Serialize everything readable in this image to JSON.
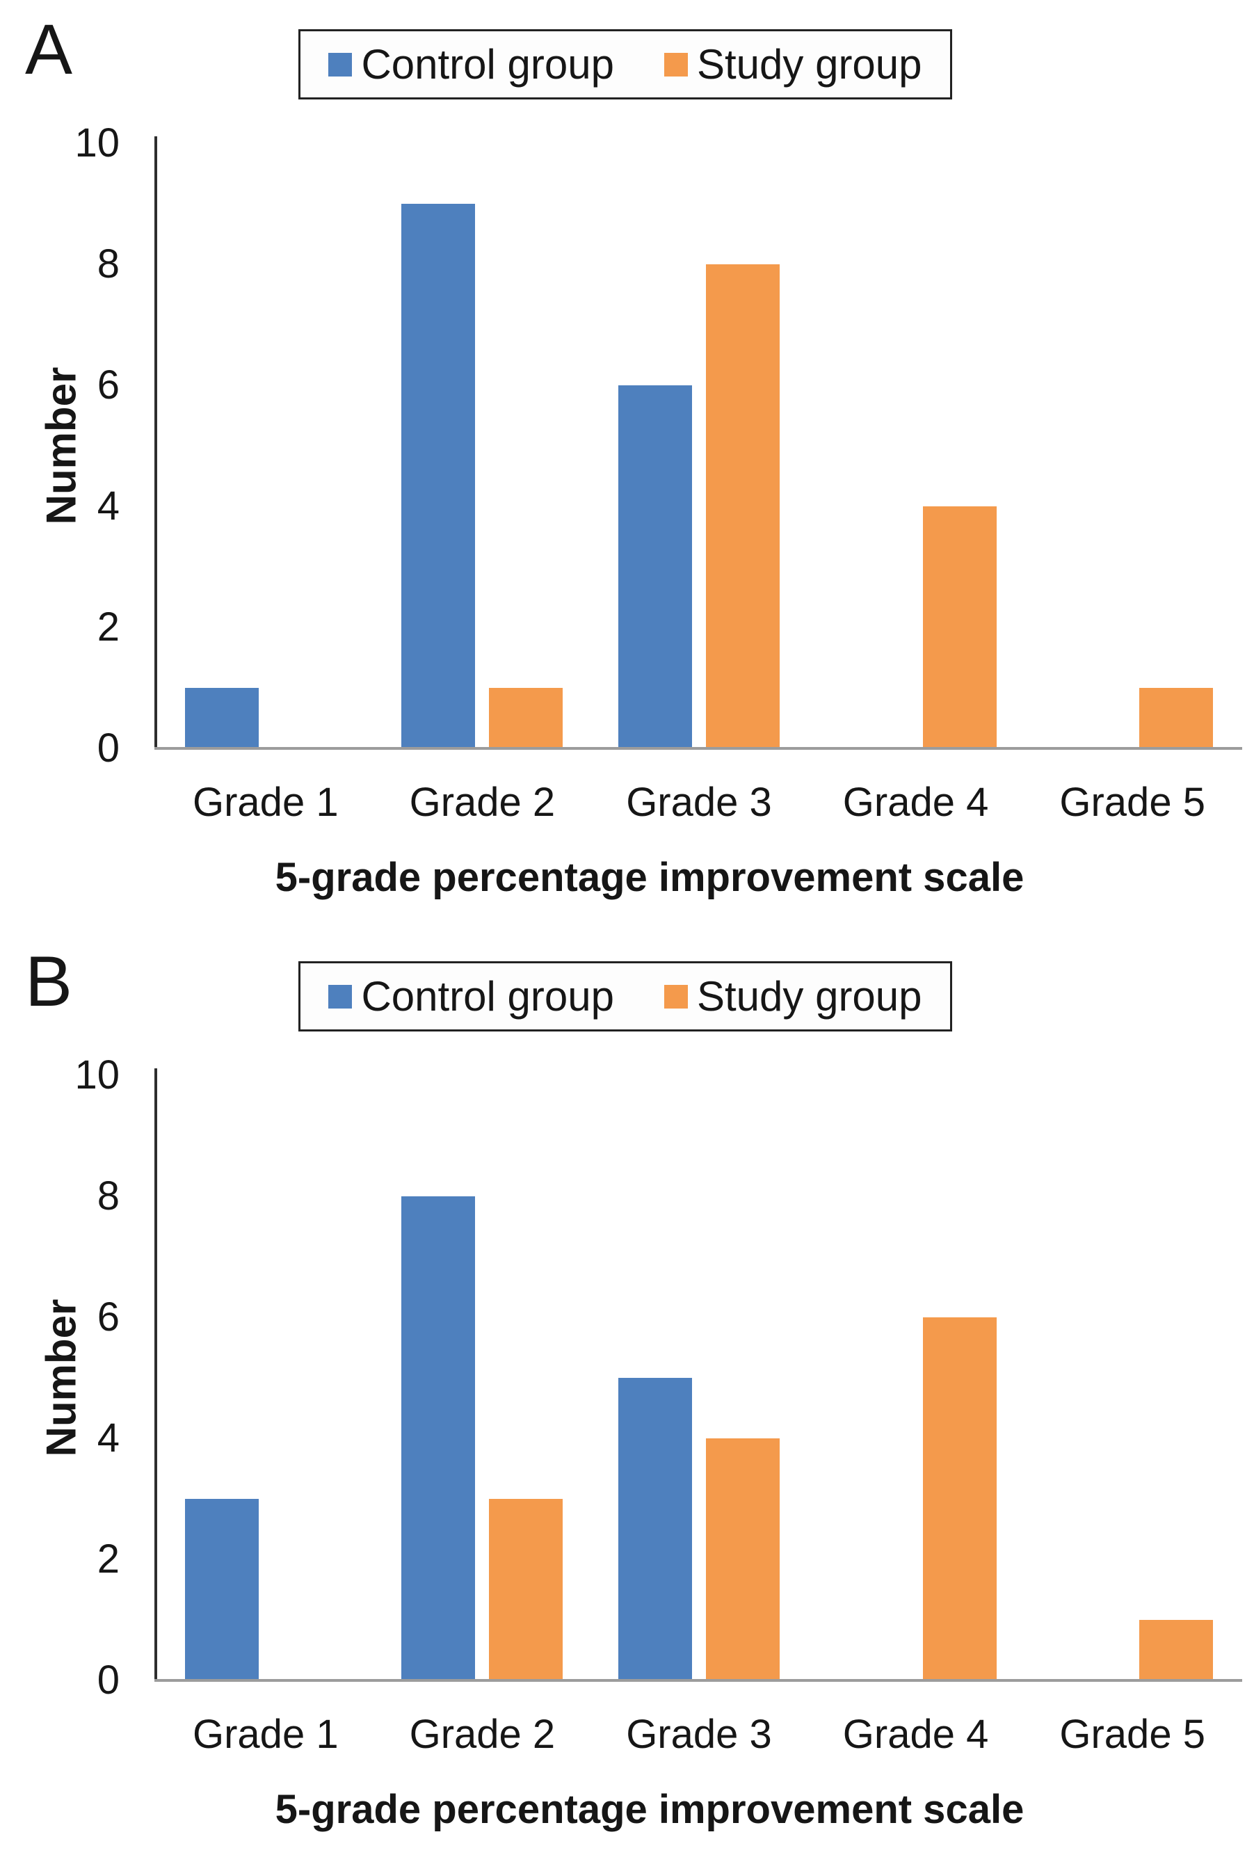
{
  "chart_data": [
    {
      "type": "bar",
      "panel": "A",
      "title": "",
      "categories": [
        "Grade 1",
        "Grade 2",
        "Grade 3",
        "Grade 4",
        "Grade 5"
      ],
      "series": [
        {
          "name": "Control group",
          "color": "#4e80be",
          "values": [
            1,
            9,
            6,
            0,
            0
          ]
        },
        {
          "name": "Study group",
          "color": "#f49a4c",
          "values": [
            0,
            1,
            8,
            4,
            1
          ]
        }
      ],
      "xlabel": "5-grade percentage improvement scale",
      "ylabel": "Number",
      "ylim": [
        0,
        10
      ],
      "yticks": [
        0,
        2,
        4,
        6,
        8,
        10
      ],
      "grid": false,
      "legend_position": "top"
    },
    {
      "type": "bar",
      "panel": "B",
      "title": "",
      "categories": [
        "Grade 1",
        "Grade 2",
        "Grade 3",
        "Grade 4",
        "Grade 5"
      ],
      "series": [
        {
          "name": "Control group",
          "color": "#4e80be",
          "values": [
            3,
            8,
            5,
            0,
            0
          ]
        },
        {
          "name": "Study group",
          "color": "#f49a4c",
          "values": [
            0,
            3,
            4,
            6,
            1
          ]
        }
      ],
      "xlabel": "5-grade percentage improvement scale",
      "ylabel": "Number",
      "ylim": [
        0,
        10
      ],
      "yticks": [
        0,
        2,
        4,
        6,
        8,
        10
      ],
      "grid": false,
      "legend_position": "top"
    }
  ],
  "style": {
    "axis_line_color": "#2e2e2e",
    "baseline_color": "#9c9c9c",
    "text_color": "#161616"
  }
}
